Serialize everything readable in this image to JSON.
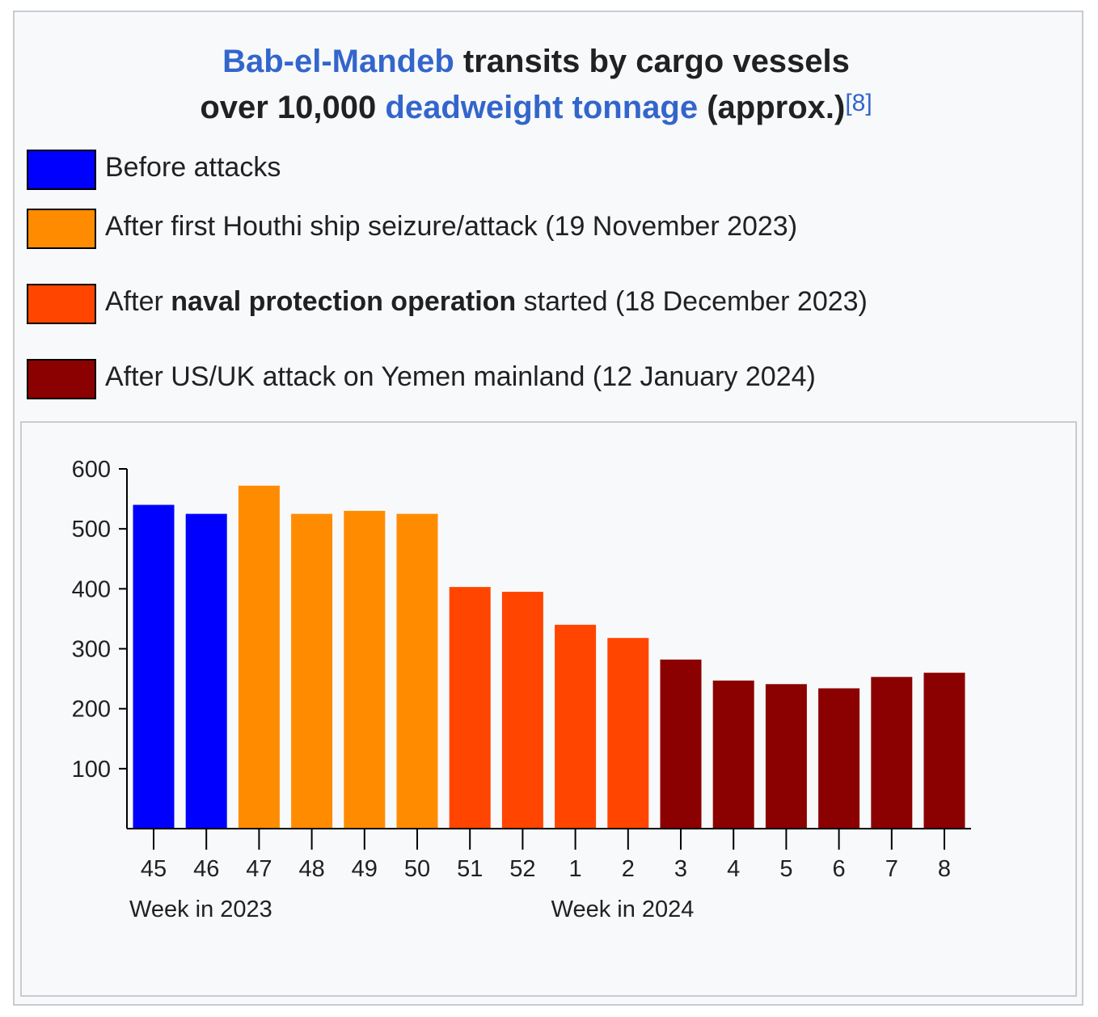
{
  "title": {
    "line1_link": "Bab-el-Mandeb",
    "line1_rest": " transits by cargo vessels",
    "line2_pre": "over 10,000 ",
    "line2_link": "deadweight tonnage",
    "line2_post": " (approx.)",
    "ref": "[8]"
  },
  "legend": [
    {
      "pre": "Before attacks",
      "bold": "",
      "post": "",
      "color": "#0000ff"
    },
    {
      "pre": "After first Houthi ship seizure/attack (19 November 2023)",
      "bold": "",
      "post": "",
      "color": "#ff8c00"
    },
    {
      "pre": "After ",
      "bold": "naval protection operation",
      "post": " started (18 December 2023)",
      "color": "#ff4500"
    },
    {
      "pre": "After US/UK attack on Yemen mainland (12 January 2024)",
      "bold": "",
      "post": "",
      "color": "#8b0000"
    }
  ],
  "chart_data": {
    "type": "bar",
    "categories": [
      "45",
      "46",
      "47",
      "48",
      "49",
      "50",
      "51",
      "52",
      "1",
      "2",
      "3",
      "4",
      "5",
      "6",
      "7",
      "8"
    ],
    "values": [
      540,
      525,
      572,
      525,
      530,
      525,
      403,
      395,
      340,
      318,
      282,
      247,
      241,
      234,
      253,
      260
    ],
    "bar_colors": [
      "#0000ff",
      "#0000ff",
      "#ff8c00",
      "#ff8c00",
      "#ff8c00",
      "#ff8c00",
      "#ff4500",
      "#ff4500",
      "#ff4500",
      "#ff4500",
      "#8b0000",
      "#8b0000",
      "#8b0000",
      "#8b0000",
      "#8b0000",
      "#8b0000"
    ],
    "yticks": [
      100,
      200,
      300,
      400,
      500,
      600
    ],
    "ylim": [
      0,
      600
    ],
    "xgroup_labels": [
      {
        "label": "Week in 2023",
        "index": 0
      },
      {
        "label": "Week in 2024",
        "index": 8
      }
    ]
  }
}
